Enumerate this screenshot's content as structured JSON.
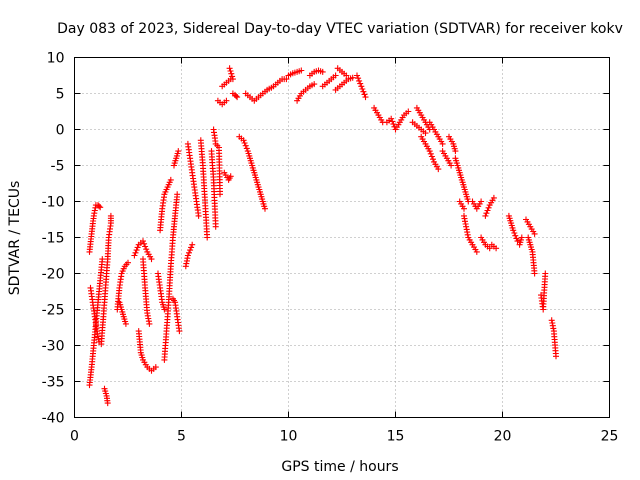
{
  "chart_data": {
    "type": "scatter",
    "title": "Day 083 of 2023, Sidereal Day-to-day VTEC variation (SDTVAR) for receiver kokv",
    "xlabel": "GPS time / hours",
    "ylabel": "SDTVAR / TECUs",
    "xlim": [
      0,
      25
    ],
    "ylim": [
      -40,
      10
    ],
    "xticks": [
      0,
      5,
      10,
      15,
      20,
      25
    ],
    "yticks": [
      -40,
      -35,
      -30,
      -25,
      -20,
      -15,
      -10,
      -5,
      0,
      5,
      10
    ],
    "grid": true,
    "marker": "+",
    "series": [
      {
        "name": "SDTVAR",
        "color": "#ff0000",
        "segments": [
          [
            [
              0.7,
              -35.5
            ],
            [
              0.8,
              -33
            ],
            [
              0.9,
              -30
            ],
            [
              1.0,
              -27
            ],
            [
              1.1,
              -24
            ],
            [
              1.2,
              -21
            ],
            [
              1.3,
              -18
            ]
          ],
          [
            [
              0.75,
              -22
            ],
            [
              0.85,
              -24
            ],
            [
              0.95,
              -26
            ],
            [
              1.05,
              -28
            ],
            [
              1.15,
              -29.5
            ]
          ],
          [
            [
              0.7,
              -17
            ],
            [
              0.8,
              -14.5
            ],
            [
              0.9,
              -12
            ],
            [
              1.0,
              -10.5
            ],
            [
              1.1,
              -10.5
            ],
            [
              1.2,
              -10.8
            ]
          ],
          [
            [
              1.25,
              -29.8
            ],
            [
              1.35,
              -26
            ],
            [
              1.45,
              -22
            ],
            [
              1.55,
              -18
            ],
            [
              1.6,
              -15
            ],
            [
              1.7,
              -13
            ],
            [
              1.7,
              -12
            ]
          ],
          [
            [
              1.4,
              -36
            ],
            [
              1.5,
              -37
            ],
            [
              1.55,
              -38
            ]
          ],
          [
            [
              2.0,
              -25
            ],
            [
              2.1,
              -22
            ],
            [
              2.2,
              -20
            ],
            [
              2.35,
              -19
            ],
            [
              2.5,
              -18.5
            ]
          ],
          [
            [
              2.1,
              -24
            ],
            [
              2.2,
              -25
            ],
            [
              2.3,
              -26
            ],
            [
              2.4,
              -27
            ]
          ],
          [
            [
              2.8,
              -17.5
            ],
            [
              3.0,
              -16
            ],
            [
              3.2,
              -15.5
            ],
            [
              3.4,
              -17
            ],
            [
              3.6,
              -18
            ]
          ],
          [
            [
              3.0,
              -28
            ],
            [
              3.1,
              -31
            ],
            [
              3.2,
              -32
            ],
            [
              3.4,
              -33
            ],
            [
              3.6,
              -33.5
            ],
            [
              3.8,
              -33
            ]
          ],
          [
            [
              3.2,
              -18
            ],
            [
              3.3,
              -22
            ],
            [
              3.4,
              -25.5
            ],
            [
              3.5,
              -27
            ]
          ],
          [
            [
              3.9,
              -20
            ],
            [
              4.0,
              -22
            ],
            [
              4.1,
              -24
            ],
            [
              4.2,
              -25
            ]
          ],
          [
            [
              4.2,
              -32
            ],
            [
              4.3,
              -28
            ],
            [
              4.4,
              -24
            ],
            [
              4.5,
              -19
            ],
            [
              4.6,
              -15
            ],
            [
              4.7,
              -12
            ],
            [
              4.8,
              -9
            ]
          ],
          [
            [
              4.0,
              -14
            ],
            [
              4.1,
              -11
            ],
            [
              4.2,
              -9
            ],
            [
              4.35,
              -8
            ],
            [
              4.5,
              -7
            ]
          ],
          [
            [
              4.6,
              -23.5
            ],
            [
              4.7,
              -24
            ],
            [
              4.8,
              -26
            ],
            [
              4.9,
              -28
            ]
          ],
          [
            [
              4.65,
              -5
            ],
            [
              4.75,
              -4
            ],
            [
              4.85,
              -3
            ]
          ],
          [
            [
              5.2,
              -19
            ],
            [
              5.3,
              -17.5
            ],
            [
              5.5,
              -16
            ]
          ],
          [
            [
              5.3,
              -2
            ],
            [
              5.4,
              -4
            ],
            [
              5.5,
              -6
            ],
            [
              5.6,
              -8
            ],
            [
              5.7,
              -10
            ],
            [
              5.8,
              -12
            ]
          ],
          [
            [
              5.9,
              -1.5
            ],
            [
              6.0,
              -5
            ],
            [
              6.2,
              -15
            ]
          ],
          [
            [
              6.4,
              -3
            ],
            [
              6.5,
              -7
            ],
            [
              6.6,
              -13.5
            ]
          ],
          [
            [
              6.5,
              0
            ],
            [
              6.6,
              -2
            ],
            [
              6.75,
              -2.5
            ],
            [
              6.8,
              -9
            ]
          ],
          [
            [
              6.7,
              4
            ],
            [
              6.9,
              3.5
            ],
            [
              7.1,
              4
            ]
          ],
          [
            [
              6.9,
              6
            ],
            [
              7.1,
              6.5
            ],
            [
              7.3,
              7
            ]
          ],
          [
            [
              7.0,
              -6
            ],
            [
              7.2,
              -7
            ],
            [
              7.3,
              -6.5
            ]
          ],
          [
            [
              7.4,
              5
            ],
            [
              7.5,
              4.8
            ],
            [
              7.6,
              4.5
            ]
          ],
          [
            [
              7.25,
              8.5
            ],
            [
              7.4,
              7
            ]
          ],
          [
            [
              7.7,
              -1
            ],
            [
              7.9,
              -1.5
            ],
            [
              8.1,
              -3
            ],
            [
              8.3,
              -5
            ],
            [
              8.5,
              -7
            ],
            [
              8.7,
              -9
            ],
            [
              8.9,
              -11
            ]
          ],
          [
            [
              8.0,
              5
            ],
            [
              8.2,
              4.5
            ],
            [
              8.4,
              4
            ],
            [
              8.6,
              4.5
            ],
            [
              8.8,
              5
            ],
            [
              9.0,
              5.5
            ],
            [
              9.2,
              5.8
            ]
          ],
          [
            [
              9.3,
              6
            ],
            [
              9.5,
              6.5
            ],
            [
              9.7,
              7
            ],
            [
              9.9,
              7
            ]
          ],
          [
            [
              10.0,
              7.5
            ],
            [
              10.2,
              7.8
            ],
            [
              10.4,
              8
            ],
            [
              10.6,
              8.2
            ]
          ],
          [
            [
              10.4,
              4
            ],
            [
              10.6,
              5
            ],
            [
              10.8,
              5.5
            ],
            [
              11.0,
              6
            ],
            [
              11.2,
              6.3
            ]
          ],
          [
            [
              11.0,
              7.5
            ],
            [
              11.2,
              8
            ],
            [
              11.4,
              8.2
            ],
            [
              11.6,
              8
            ]
          ],
          [
            [
              11.6,
              6
            ],
            [
              11.8,
              6.5
            ],
            [
              12.0,
              7
            ],
            [
              12.2,
              7.5
            ]
          ],
          [
            [
              12.2,
              5.5
            ],
            [
              12.4,
              6
            ],
            [
              12.6,
              6.5
            ],
            [
              12.8,
              7
            ],
            [
              13.0,
              7.2
            ]
          ],
          [
            [
              12.3,
              8.5
            ],
            [
              12.5,
              8
            ],
            [
              12.7,
              7.5
            ]
          ],
          [
            [
              13.2,
              7.5
            ],
            [
              13.4,
              6
            ],
            [
              13.6,
              4.5
            ]
          ],
          [
            [
              14.0,
              3
            ],
            [
              14.2,
              2
            ],
            [
              14.4,
              1
            ]
          ],
          [
            [
              14.6,
              1
            ],
            [
              14.8,
              1.5
            ],
            [
              15.0,
              0
            ],
            [
              15.2,
              1
            ],
            [
              15.4,
              2
            ],
            [
              15.6,
              2.5
            ]
          ],
          [
            [
              15.8,
              1
            ],
            [
              16.0,
              0.5
            ],
            [
              16.2,
              0
            ],
            [
              16.4,
              -0.5
            ]
          ],
          [
            [
              16.0,
              3
            ],
            [
              16.2,
              2
            ],
            [
              16.4,
              1
            ],
            [
              16.6,
              0
            ]
          ],
          [
            [
              16.2,
              -1
            ],
            [
              16.4,
              -2
            ],
            [
              16.6,
              -3
            ],
            [
              16.8,
              -4.5
            ],
            [
              17.0,
              -5.5
            ]
          ],
          [
            [
              16.6,
              1
            ],
            [
              16.8,
              0
            ],
            [
              17.0,
              -1
            ],
            [
              17.2,
              -2
            ]
          ],
          [
            [
              17.2,
              -3
            ],
            [
              17.4,
              -4
            ],
            [
              17.6,
              -5
            ]
          ],
          [
            [
              17.5,
              -1
            ],
            [
              17.7,
              -2
            ],
            [
              17.8,
              -3
            ]
          ],
          [
            [
              17.8,
              -4
            ],
            [
              18.0,
              -6
            ],
            [
              18.2,
              -8
            ],
            [
              18.4,
              -10
            ]
          ],
          [
            [
              18.0,
              -10
            ],
            [
              18.2,
              -11
            ]
          ],
          [
            [
              18.2,
              -12
            ],
            [
              18.4,
              -15
            ],
            [
              18.6,
              -16
            ],
            [
              18.8,
              -17
            ]
          ],
          [
            [
              18.6,
              -10
            ],
            [
              18.8,
              -11
            ],
            [
              19.0,
              -10
            ]
          ],
          [
            [
              19.0,
              -15
            ],
            [
              19.2,
              -16
            ],
            [
              19.4,
              -16.5
            ]
          ],
          [
            [
              19.2,
              -12
            ],
            [
              19.4,
              -10.5
            ],
            [
              19.6,
              -9.5
            ]
          ],
          [
            [
              19.5,
              -16
            ],
            [
              19.7,
              -16.5
            ]
          ],
          [
            [
              20.3,
              -12
            ],
            [
              20.5,
              -14
            ],
            [
              20.7,
              -15.5
            ]
          ],
          [
            [
              20.8,
              -16
            ],
            [
              20.9,
              -15
            ]
          ],
          [
            [
              21.1,
              -12.5
            ],
            [
              21.3,
              -13.5
            ],
            [
              21.5,
              -14.5
            ]
          ],
          [
            [
              21.2,
              -15
            ],
            [
              21.4,
              -17
            ],
            [
              21.5,
              -20
            ]
          ],
          [
            [
              21.8,
              -23
            ],
            [
              21.9,
              -25
            ],
            [
              22.0,
              -20
            ]
          ],
          [
            [
              22.3,
              -26.5
            ],
            [
              22.4,
              -28
            ],
            [
              22.5,
              -31.5
            ]
          ]
        ]
      }
    ]
  }
}
